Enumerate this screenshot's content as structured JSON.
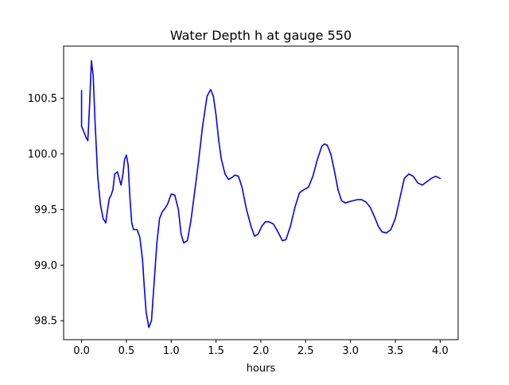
{
  "chart_data": {
    "type": "line",
    "title": "Water Depth h at gauge 550",
    "xlabel": "hours",
    "ylabel": "",
    "xlim": [
      -0.2,
      4.2
    ],
    "ylim": [
      98.33,
      100.97
    ],
    "xticks": [
      0.0,
      0.5,
      1.0,
      1.5,
      2.0,
      2.5,
      3.0,
      3.5,
      4.0
    ],
    "xtick_labels": [
      "0.0",
      "0.5",
      "1.0",
      "1.5",
      "2.0",
      "2.5",
      "3.0",
      "3.5",
      "4.0"
    ],
    "yticks": [
      98.5,
      99.0,
      99.5,
      100.0,
      100.5
    ],
    "ytick_labels": [
      "98.5",
      "99.0",
      "99.5",
      "100.0",
      "100.5"
    ],
    "grid": false,
    "legend": "none",
    "series": [
      {
        "color": "#0000ff",
        "x": [
          0.0,
          0.0,
          0.02,
          0.05,
          0.07,
          0.09,
          0.11,
          0.13,
          0.15,
          0.18,
          0.21,
          0.24,
          0.27,
          0.29,
          0.31,
          0.33,
          0.35,
          0.37,
          0.4,
          0.42,
          0.44,
          0.46,
          0.48,
          0.5,
          0.52,
          0.54,
          0.56,
          0.58,
          0.6,
          0.62,
          0.65,
          0.68,
          0.7,
          0.72,
          0.75,
          0.78,
          0.81,
          0.84,
          0.87,
          0.9,
          0.93,
          0.96,
          1.0,
          1.04,
          1.08,
          1.11,
          1.14,
          1.18,
          1.22,
          1.26,
          1.3,
          1.35,
          1.4,
          1.44,
          1.47,
          1.5,
          1.53,
          1.56,
          1.6,
          1.64,
          1.68,
          1.71,
          1.75,
          1.79,
          1.84,
          1.89,
          1.93,
          1.97,
          2.01,
          2.05,
          2.09,
          2.14,
          2.19,
          2.24,
          2.28,
          2.33,
          2.38,
          2.43,
          2.48,
          2.53,
          2.58,
          2.63,
          2.68,
          2.71,
          2.74,
          2.78,
          2.82,
          2.86,
          2.9,
          2.94,
          2.98,
          3.03,
          3.08,
          3.12,
          3.17,
          3.22,
          3.27,
          3.31,
          3.35,
          3.4,
          3.45,
          3.5,
          3.55,
          3.6,
          3.65,
          3.7,
          3.75,
          3.8,
          3.85,
          3.9,
          3.95,
          4.0
        ],
        "y": [
          100.57,
          100.25,
          100.21,
          100.15,
          100.12,
          100.45,
          100.84,
          100.7,
          100.3,
          99.8,
          99.55,
          99.42,
          99.38,
          99.5,
          99.6,
          99.63,
          99.68,
          99.82,
          99.84,
          99.78,
          99.72,
          99.81,
          99.95,
          99.99,
          99.9,
          99.6,
          99.38,
          99.32,
          99.32,
          99.32,
          99.25,
          99.05,
          98.8,
          98.58,
          98.44,
          98.5,
          98.85,
          99.2,
          99.42,
          99.48,
          99.51,
          99.55,
          99.64,
          99.63,
          99.5,
          99.28,
          99.2,
          99.22,
          99.4,
          99.65,
          99.9,
          100.25,
          100.52,
          100.58,
          100.52,
          100.35,
          100.12,
          99.95,
          99.82,
          99.77,
          99.79,
          99.81,
          99.8,
          99.7,
          99.5,
          99.35,
          99.26,
          99.28,
          99.35,
          99.39,
          99.39,
          99.37,
          99.3,
          99.22,
          99.23,
          99.35,
          99.52,
          99.65,
          99.68,
          99.7,
          99.8,
          99.95,
          100.07,
          100.09,
          100.08,
          100.0,
          99.85,
          99.68,
          99.58,
          99.56,
          99.57,
          99.58,
          99.59,
          99.59,
          99.57,
          99.52,
          99.43,
          99.35,
          99.3,
          99.29,
          99.32,
          99.42,
          99.6,
          99.78,
          99.82,
          99.8,
          99.74,
          99.72,
          99.75,
          99.78,
          99.8,
          99.78
        ]
      }
    ]
  }
}
